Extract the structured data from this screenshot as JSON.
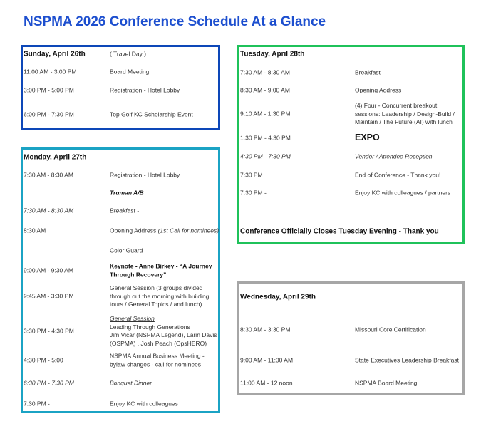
{
  "title": "NSPMA 2026 Conference Schedule At a Glance",
  "colors": {
    "title": "#1d4fcf",
    "sunday": "#0d47b8",
    "monday": "#1ba3c4",
    "tuesday": "#1fc25a",
    "wednesday": "#a6a6a6"
  },
  "days": [
    {
      "id": "sun",
      "header": "Sunday, April 26th",
      "header_note": "( Travel Day )",
      "rows": [
        {
          "time": "11:00 AM - 3:00 PM",
          "event": "Board Meeting"
        },
        {
          "time": "3:00 PM - 5:00 PM",
          "event": "Registration - Hotel Lobby"
        },
        {
          "time": "6:00 PM - 7:30 PM",
          "event": "Top Golf KC Scholarship Event"
        }
      ]
    },
    {
      "id": "mon",
      "header": "Monday, April 27th",
      "rows": [
        {
          "time": "7:30 AM - 8:30 AM",
          "event": "Registration - Hotel Lobby"
        },
        {
          "time": "",
          "event": "Truman A/B",
          "style": "bold-italic"
        },
        {
          "time": "7:30 AM - 8:30 AM",
          "event": "Breakfast -",
          "style": "italic"
        },
        {
          "time": "8:30 AM",
          "event": "Opening Address ",
          "note": "(1st Call for nominees)"
        },
        {
          "time": "",
          "event": "Color Guard"
        },
        {
          "time": "9:00 AM - 9:30 AM",
          "event": "Keynote - Anne Birkey - “A Journey Through Recovery”",
          "style": "bold"
        },
        {
          "time": "9:45 AM - 3:30 PM",
          "event": "General Session (3 groups divided through out the morning with building tours / General Topics / and lunch)"
        },
        {
          "time": "3:30 PM - 4:30 PM",
          "heading": "General Session ",
          "lines": [
            "Leading Through Generations",
            "Jim Vicar (NSPMA Legend), Larin Davis (OSPMA) , Josh Peach (OpsHERO)"
          ]
        },
        {
          "time": "4:30 PM - 5:00",
          "event": "NSPMA Annual Business Meeting - bylaw changes - call for nominees"
        },
        {
          "time": "6:30 PM - 7:30 PM",
          "event": "Banquet Dinner",
          "style": "italic"
        },
        {
          "time": "7:30 PM -",
          "event": "Enjoy KC with colleagues"
        }
      ]
    },
    {
      "id": "tue",
      "header": "Tuesday, April 28th",
      "rows": [
        {
          "time": "7:30 AM - 8:30 AM",
          "event": "Breakfast"
        },
        {
          "time": "8:30 AM - 9:00 AM",
          "event": "Opening Address"
        },
        {
          "time": "9:10 AM - 1:30 PM",
          "event": "(4) Four - Concurrent breakout sessions: Leadership / Design-Build / Maintain / The Future (AI) with lunch"
        },
        {
          "time": "1:30 PM - 4:30 PM",
          "event": "EXPO",
          "style": "big"
        },
        {
          "time": "4:30 PM - 7:30 PM",
          "event": "Vendor / Attendee Reception",
          "style": "italic"
        },
        {
          "time": "7:30 PM",
          "event": "End of Conference - Thank you!"
        },
        {
          "time": "7:30 PM -",
          "event": "Enjoy KC with colleagues / partners"
        }
      ],
      "footer": "Conference Officially Closes Tuesday Evening - Thank you"
    },
    {
      "id": "wed",
      "header": "Wednesday, April 29th",
      "rows": [
        {
          "time": "8:30 AM - 3:30 PM",
          "event": "Missouri Core Certification"
        },
        {
          "time": "9:00 AM - 11:00 AM",
          "event": "State Executives Leadership Breakfast"
        },
        {
          "time": "11:00 AM - 12 noon",
          "event": "NSPMA Board Meeting"
        }
      ]
    }
  ]
}
